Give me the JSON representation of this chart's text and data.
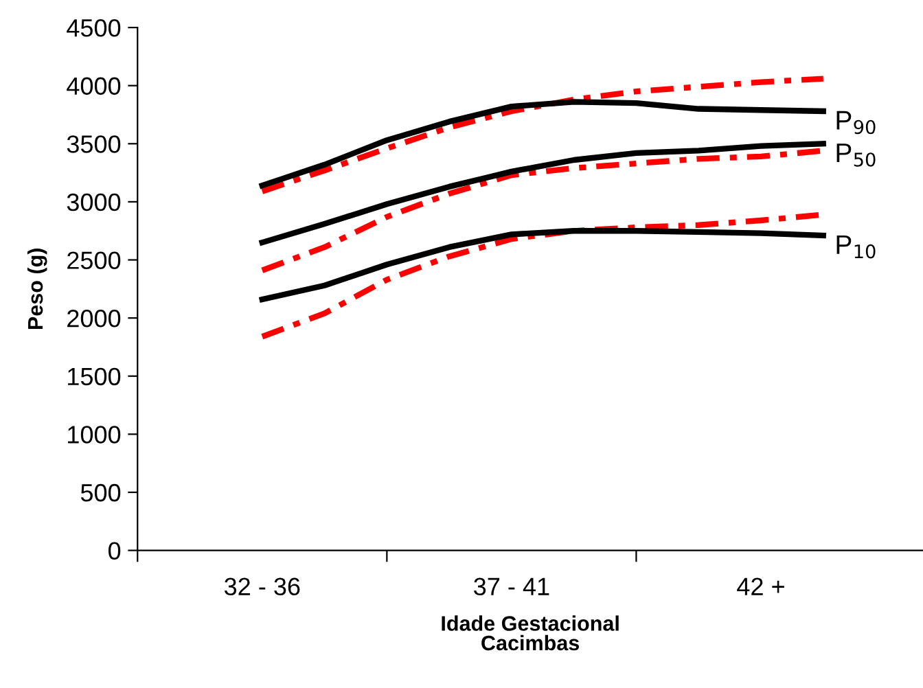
{
  "chart_data": {
    "type": "line",
    "xlabel": "Idade Gestacional\nCacimbas",
    "ylabel": "Peso (g)",
    "categories": [
      "32 - 36",
      null,
      null,
      null,
      "37 - 41",
      null,
      null,
      null,
      "42 +",
      null
    ],
    "ylim": [
      0,
      4500
    ],
    "yticks": [
      0,
      500,
      1000,
      1500,
      2000,
      2500,
      3000,
      3500,
      4000,
      4500
    ],
    "grid": false,
    "legend": false,
    "marker": "none",
    "series": [
      {
        "name": "P$_{90}$",
        "color": "#000000",
        "line_style": "solid",
        "values": [
          3140,
          3320,
          3530,
          3690,
          3820,
          3860,
          3850,
          3800,
          3790,
          3780
        ]
      },
      {
        "color": "#ff0000",
        "line_style": "dashed",
        "values": [
          3090,
          3270,
          3460,
          3640,
          3780,
          3880,
          3950,
          3990,
          4030,
          4060
        ]
      },
      {
        "name": "P$_{50}$",
        "color": "#000000",
        "line_style": "solid",
        "values": [
          2650,
          2810,
          2980,
          3130,
          3260,
          3360,
          3420,
          3440,
          3480,
          3500
        ]
      },
      {
        "color": "#ff0000",
        "line_style": "dashed",
        "values": [
          2410,
          2610,
          2870,
          3070,
          3230,
          3290,
          3330,
          3370,
          3390,
          3440
        ]
      },
      {
        "name": "P$_{10}$",
        "color": "#000000",
        "line_style": "solid",
        "values": [
          2160,
          2280,
          2460,
          2610,
          2720,
          2750,
          2750,
          2740,
          2730,
          2710
        ]
      },
      {
        "color": "#ff0000",
        "line_style": "dashed",
        "values": [
          1840,
          2040,
          2330,
          2530,
          2680,
          2750,
          2780,
          2800,
          2840,
          2890
        ]
      }
    ]
  }
}
